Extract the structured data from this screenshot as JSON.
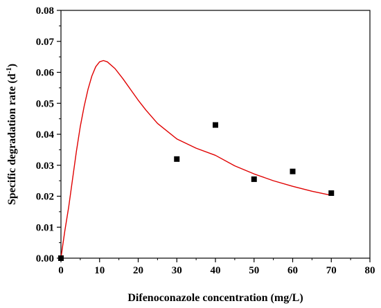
{
  "chart_data": {
    "type": "scatter",
    "title": "",
    "xlabel": "Difenoconazole concentration (mg/L)",
    "ylabel_main": "Specific degradation rate (d",
    "ylabel_sup": "-1",
    "ylabel_end": ")",
    "xlim": [
      0,
      80
    ],
    "ylim": [
      0,
      0.08
    ],
    "x_ticks": [
      0,
      10,
      20,
      30,
      40,
      50,
      60,
      70,
      80
    ],
    "y_ticks": [
      0,
      0.01,
      0.02,
      0.03,
      0.04,
      0.05,
      0.06,
      0.07,
      0.08
    ],
    "x_tick_labels": [
      "0",
      "10",
      "20",
      "30",
      "40",
      "50",
      "60",
      "70",
      "80"
    ],
    "y_tick_labels": [
      "0.00",
      "0.01",
      "0.02",
      "0.03",
      "0.04",
      "0.05",
      "0.06",
      "0.07",
      "0.08"
    ],
    "grid": false,
    "series": [
      {
        "kind": "scatter",
        "marker": "square",
        "color": "#000000",
        "points": [
          {
            "x": 0,
            "y": 0.0
          },
          {
            "x": 30,
            "y": 0.032
          },
          {
            "x": 40,
            "y": 0.043
          },
          {
            "x": 50,
            "y": 0.0255
          },
          {
            "x": 60,
            "y": 0.028
          },
          {
            "x": 70,
            "y": 0.021
          }
        ]
      },
      {
        "kind": "line",
        "color": "#e00000",
        "points": [
          {
            "x": 0,
            "y": 0.0
          },
          {
            "x": 0.5,
            "y": 0.0045
          },
          {
            "x": 1,
            "y": 0.0088
          },
          {
            "x": 2,
            "y": 0.0165
          },
          {
            "x": 3,
            "y": 0.0255
          },
          {
            "x": 4,
            "y": 0.0345
          },
          {
            "x": 5,
            "y": 0.0425
          },
          {
            "x": 6,
            "y": 0.049
          },
          {
            "x": 7,
            "y": 0.0545
          },
          {
            "x": 8,
            "y": 0.0588
          },
          {
            "x": 9,
            "y": 0.0618
          },
          {
            "x": 10,
            "y": 0.0634
          },
          {
            "x": 11,
            "y": 0.0638
          },
          {
            "x": 12,
            "y": 0.0634
          },
          {
            "x": 14,
            "y": 0.0612
          },
          {
            "x": 16,
            "y": 0.058
          },
          {
            "x": 18,
            "y": 0.0545
          },
          {
            "x": 20,
            "y": 0.051
          },
          {
            "x": 22,
            "y": 0.0478
          },
          {
            "x": 25,
            "y": 0.0435
          },
          {
            "x": 30,
            "y": 0.0385
          },
          {
            "x": 35,
            "y": 0.0355
          },
          {
            "x": 40,
            "y": 0.0332
          },
          {
            "x": 45,
            "y": 0.0298
          },
          {
            "x": 50,
            "y": 0.0272
          },
          {
            "x": 55,
            "y": 0.025
          },
          {
            "x": 60,
            "y": 0.0232
          },
          {
            "x": 65,
            "y": 0.0216
          },
          {
            "x": 70,
            "y": 0.0203
          }
        ]
      }
    ]
  }
}
